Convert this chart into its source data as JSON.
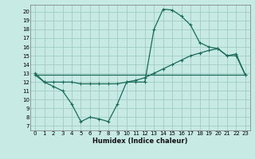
{
  "xlabel": "Humidex (Indice chaleur)",
  "bg_color": "#c8eae4",
  "grid_color": "#a0ccc4",
  "line_color": "#1a6b5a",
  "xlim": [
    -0.5,
    23.5
  ],
  "ylim": [
    6.5,
    20.8
  ],
  "yticks": [
    7,
    8,
    9,
    10,
    11,
    12,
    13,
    14,
    15,
    16,
    17,
    18,
    19,
    20
  ],
  "xticks": [
    0,
    1,
    2,
    3,
    4,
    5,
    6,
    7,
    8,
    9,
    10,
    11,
    12,
    13,
    14,
    15,
    16,
    17,
    18,
    19,
    20,
    21,
    22,
    23
  ],
  "line1_x": [
    0,
    1,
    2,
    3,
    4,
    5,
    6,
    7,
    8,
    9,
    10,
    11,
    12,
    13,
    14,
    15,
    16,
    17,
    18,
    19,
    20,
    21,
    22,
    23
  ],
  "line1_y": [
    13.0,
    12.0,
    11.5,
    11.0,
    9.5,
    7.5,
    8.0,
    7.8,
    7.5,
    9.5,
    12.0,
    12.0,
    12.0,
    18.0,
    20.3,
    20.2,
    19.5,
    18.5,
    16.5,
    16.0,
    15.8,
    15.0,
    15.2,
    12.8
  ],
  "line2_x": [
    0,
    1,
    2,
    3,
    4,
    5,
    6,
    7,
    8,
    9,
    10,
    11,
    12,
    13,
    14,
    15,
    16,
    17,
    18,
    19,
    20,
    21,
    22,
    23
  ],
  "line2_y": [
    12.8,
    12.0,
    12.0,
    12.0,
    12.0,
    11.8,
    11.8,
    11.8,
    11.8,
    11.8,
    12.0,
    12.2,
    12.5,
    13.0,
    13.5,
    14.0,
    14.5,
    15.0,
    15.3,
    15.6,
    15.8,
    15.0,
    15.0,
    12.8
  ],
  "line3_x": [
    0,
    23
  ],
  "line3_y": [
    12.8,
    12.8
  ]
}
